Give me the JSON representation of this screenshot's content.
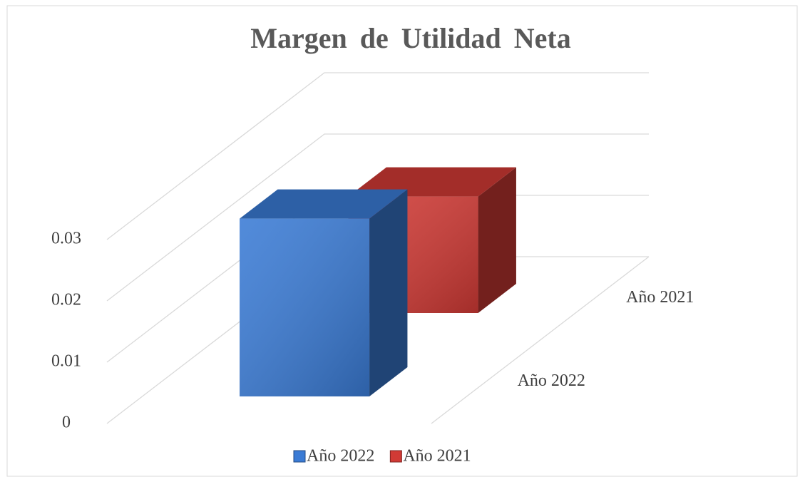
{
  "chart_data": {
    "type": "bar3d",
    "title": "Margen de Utilidad Neta",
    "categories": [
      null
    ],
    "series": [
      {
        "name": "Año 2022",
        "color": "#3a7bd5",
        "values": [
          0.029
        ]
      },
      {
        "name": "Año 2021",
        "color": "#d13a35",
        "values": [
          0.019
        ]
      }
    ],
    "ylim": [
      0,
      0.03
    ],
    "yticks": [
      0,
      0.01,
      0.02,
      0.03
    ],
    "grid": true,
    "legend": "bottom"
  }
}
